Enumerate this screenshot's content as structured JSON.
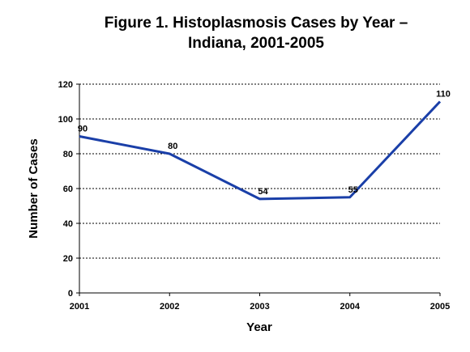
{
  "chart_data": {
    "type": "line",
    "title_line1": "Figure 1. Histoplasmosis Cases by Year –",
    "title_line2": "Indiana, 2001-2005",
    "xlabel": "Year",
    "ylabel": "Number of Cases",
    "categories": [
      "2001",
      "2002",
      "2003",
      "2004",
      "2005"
    ],
    "series": [
      {
        "values": [
          90,
          80,
          54,
          55,
          110
        ],
        "color": "#1a3fa8"
      }
    ],
    "data_labels": [
      "90",
      "80",
      "54",
      "55",
      "110"
    ],
    "ylim": [
      0,
      120
    ],
    "yticks": [
      0,
      20,
      40,
      60,
      80,
      100,
      120
    ],
    "grid": "horizontal-dotted",
    "legend": "none"
  }
}
